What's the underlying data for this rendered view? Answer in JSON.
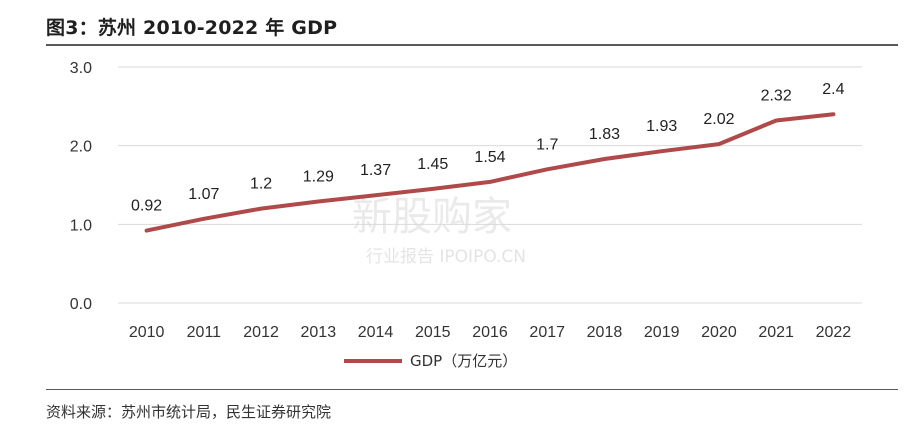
{
  "title": "图3：苏州 2010-2022 年 GDP",
  "source": "资料来源：苏州市统计局，民生证券研究院",
  "watermark": {
    "line1": "新股购家",
    "line2": "行业报告 IPOIPO.CN"
  },
  "colors": {
    "line": "#b04a4a",
    "grid": "#d9d9d9",
    "rule": "#5a5a5a"
  },
  "chart_data": {
    "type": "line",
    "title": "",
    "xlabel": "",
    "ylabel": "",
    "categories": [
      "2010",
      "2011",
      "2012",
      "2013",
      "2014",
      "2015",
      "2016",
      "2017",
      "2018",
      "2019",
      "2020",
      "2021",
      "2022"
    ],
    "series": [
      {
        "name": "GDP（万亿元）",
        "values": [
          0.92,
          1.07,
          1.2,
          1.29,
          1.37,
          1.45,
          1.54,
          1.7,
          1.83,
          1.93,
          2.02,
          2.32,
          2.4
        ],
        "labels": [
          "0.92",
          "1.07",
          "1.2",
          "1.29",
          "1.37",
          "1.45",
          "1.54",
          "1.7",
          "1.83",
          "1.93",
          "2.02",
          "2.32",
          "2.4"
        ]
      }
    ],
    "ylim": [
      0,
      3.0
    ],
    "yticks": [
      "0.0",
      "1.0",
      "2.0",
      "3.0"
    ],
    "grid": true,
    "legend": "bottom-center"
  }
}
